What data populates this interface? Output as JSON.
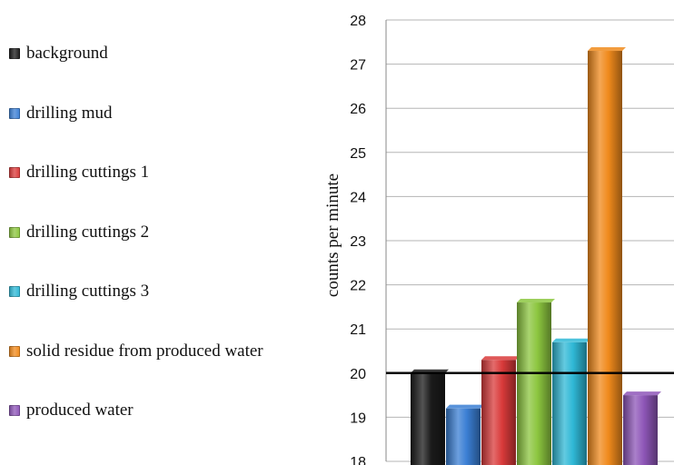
{
  "chart_data": {
    "type": "bar",
    "title": "",
    "xlabel": "",
    "ylabel": "counts per minute",
    "ylim": [
      18,
      28
    ],
    "yticks": [
      18,
      19,
      20,
      21,
      22,
      23,
      24,
      25,
      26,
      27,
      28
    ],
    "grid": true,
    "legend_position": "left",
    "reference_line": 20,
    "categories": [
      "background",
      "drilling mud",
      "drilling cuttings 1",
      "drilling cuttings 2",
      "drilling cuttings 3",
      "solid residue from produced water",
      "produced water"
    ],
    "values": [
      20.0,
      19.2,
      20.3,
      21.6,
      20.7,
      27.3,
      19.5
    ],
    "colors": [
      "#1a1a1a",
      "#3b7fd4",
      "#d93a3a",
      "#8cc63f",
      "#2fb8d6",
      "#f08a1c",
      "#8e56b8"
    ]
  }
}
